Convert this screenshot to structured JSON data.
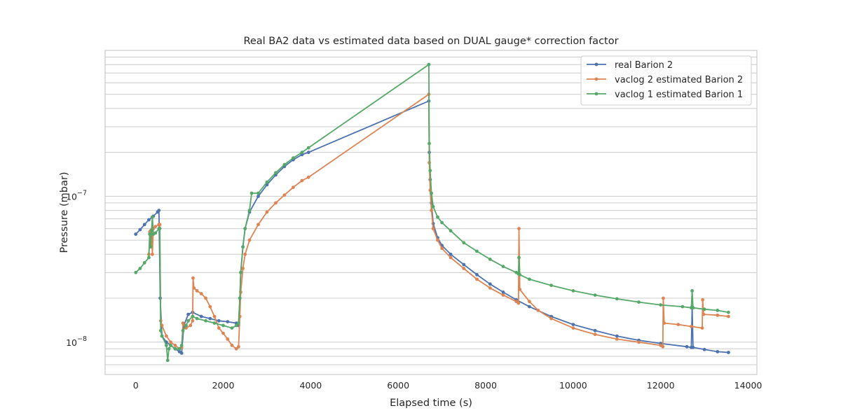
{
  "chart_data": {
    "type": "line",
    "title": "Real BA2 data vs estimated data based on DUAL gauge* correction factor",
    "xlabel": "Elapsed time (s)",
    "ylabel": "Pressure (mbar)",
    "xlim": [
      -700,
      14200
    ],
    "ylim": [
      6e-09,
      1e-06
    ],
    "yscale": "log",
    "grid": "horizontal",
    "legend_position": "top-right",
    "x_ticks": [
      {
        "value": 0,
        "label": "0"
      },
      {
        "value": 2000,
        "label": "2000"
      },
      {
        "value": 4000,
        "label": "4000"
      },
      {
        "value": 6000,
        "label": "6000"
      },
      {
        "value": 8000,
        "label": "8000"
      },
      {
        "value": 10000,
        "label": "10000"
      },
      {
        "value": 12000,
        "label": "12000"
      },
      {
        "value": 14000,
        "label": "14000"
      }
    ],
    "y_major_ticks": [
      {
        "value": 1e-08,
        "base": "10",
        "exp": "−8"
      },
      {
        "value": 1e-07,
        "base": "10",
        "exp": "−7"
      }
    ],
    "y_minor_gridlines": [
      6e-09,
      7e-09,
      8e-09,
      9e-09,
      1e-08,
      2e-08,
      3e-08,
      4e-08,
      5e-08,
      6e-08,
      7e-08,
      8e-08,
      9e-08,
      1e-07,
      2e-07,
      3e-07,
      4e-07,
      5e-07,
      6e-07,
      7e-07,
      8e-07,
      9e-07
    ],
    "series": [
      {
        "name": "real Barion 2",
        "color": "#4c72b0",
        "points": [
          [
            0,
            5.5e-08
          ],
          [
            100,
            5.9e-08
          ],
          [
            200,
            6.4e-08
          ],
          [
            300,
            6.9e-08
          ],
          [
            400,
            7.3e-08
          ],
          [
            500,
            7.8e-08
          ],
          [
            530,
            8e-08
          ],
          [
            560,
            2e-08
          ],
          [
            600,
            1.1e-08
          ],
          [
            700,
            1e-08
          ],
          [
            800,
            9.5e-09
          ],
          [
            900,
            9e-09
          ],
          [
            1000,
            8.6e-09
          ],
          [
            1050,
            8.4e-09
          ],
          [
            1100,
            1.3e-08
          ],
          [
            1200,
            1.55e-08
          ],
          [
            1300,
            1.6e-08
          ],
          [
            1500,
            1.5e-08
          ],
          [
            1700,
            1.45e-08
          ],
          [
            1900,
            1.4e-08
          ],
          [
            2100,
            1.38e-08
          ],
          [
            2300,
            1.35e-08
          ],
          [
            2350,
            1.3e-08
          ],
          [
            2380,
            2e-08
          ],
          [
            2400,
            3e-08
          ],
          [
            2450,
            4.5e-08
          ],
          [
            2500,
            6e-08
          ],
          [
            2600,
            7.8e-08
          ],
          [
            2800,
            1e-07
          ],
          [
            3000,
            1.2e-07
          ],
          [
            3200,
            1.4e-07
          ],
          [
            3400,
            1.6e-07
          ],
          [
            3600,
            1.78e-07
          ],
          [
            3800,
            1.93e-07
          ],
          [
            3950,
            2e-07
          ],
          [
            6700,
            4.5e-07
          ],
          [
            6710,
            2e-07
          ],
          [
            6730,
            1.3e-07
          ],
          [
            6760,
            9e-08
          ],
          [
            6800,
            6.5e-08
          ],
          [
            6900,
            5.2e-08
          ],
          [
            7000,
            4.6e-08
          ],
          [
            7200,
            4e-08
          ],
          [
            7500,
            3.4e-08
          ],
          [
            7800,
            2.9e-08
          ],
          [
            8100,
            2.5e-08
          ],
          [
            8400,
            2.2e-08
          ],
          [
            8700,
            1.95e-08
          ],
          [
            9000,
            1.75e-08
          ],
          [
            9500,
            1.5e-08
          ],
          [
            10000,
            1.32e-08
          ],
          [
            10500,
            1.2e-08
          ],
          [
            11000,
            1.1e-08
          ],
          [
            11500,
            1.03e-08
          ],
          [
            12000,
            9.8e-09
          ],
          [
            12600,
            9.3e-09
          ],
          [
            12700,
            9.2e-09
          ],
          [
            12720,
            1.75e-08
          ],
          [
            12740,
            9.2e-09
          ],
          [
            13000,
            8.9e-09
          ],
          [
            13300,
            8.6e-09
          ],
          [
            13550,
            8.5e-09
          ]
        ]
      },
      {
        "name": "vaclog 2 estimated Barion 2",
        "color": "#dd8452",
        "points": [
          [
            300,
            4e-08
          ],
          [
            320,
            5.7e-08
          ],
          [
            340,
            5.8e-08
          ],
          [
            360,
            5.9e-08
          ],
          [
            380,
            4e-08
          ],
          [
            400,
            6e-08
          ],
          [
            450,
            6.2e-08
          ],
          [
            530,
            6.4e-08
          ],
          [
            550,
            6.4e-08
          ],
          [
            570,
            1.4e-08
          ],
          [
            600,
            1.3e-08
          ],
          [
            700,
            1.1e-08
          ],
          [
            800,
            1e-08
          ],
          [
            900,
            9.5e-09
          ],
          [
            1000,
            9e-09
          ],
          [
            1050,
            9.2e-09
          ],
          [
            1080,
            1.35e-08
          ],
          [
            1150,
            1.25e-08
          ],
          [
            1250,
            1.3e-08
          ],
          [
            1300,
            1.4e-08
          ],
          [
            1310,
            2.75e-08
          ],
          [
            1330,
            2.35e-08
          ],
          [
            1400,
            2.25e-08
          ],
          [
            1500,
            2.15e-08
          ],
          [
            1600,
            2e-08
          ],
          [
            1700,
            1.75e-08
          ],
          [
            1800,
            1.5e-08
          ],
          [
            1900,
            1.25e-08
          ],
          [
            2000,
            1.15e-08
          ],
          [
            2100,
            1.05e-08
          ],
          [
            2200,
            9.5e-09
          ],
          [
            2300,
            9e-09
          ],
          [
            2350,
            9.3e-09
          ],
          [
            2380,
            1.5e-08
          ],
          [
            2400,
            2.2e-08
          ],
          [
            2450,
            3.2e-08
          ],
          [
            2500,
            4e-08
          ],
          [
            2600,
            5e-08
          ],
          [
            2800,
            6.4e-08
          ],
          [
            3000,
            7.8e-08
          ],
          [
            3200,
            9e-08
          ],
          [
            3400,
            1.02e-07
          ],
          [
            3600,
            1.15e-07
          ],
          [
            3800,
            1.28e-07
          ],
          [
            3950,
            1.35e-07
          ],
          [
            6700,
            5e-07
          ],
          [
            6710,
            1.7e-07
          ],
          [
            6730,
            1.1e-07
          ],
          [
            6760,
            8e-08
          ],
          [
            6800,
            6e-08
          ],
          [
            6900,
            5e-08
          ],
          [
            7000,
            4.4e-08
          ],
          [
            7200,
            3.8e-08
          ],
          [
            7500,
            3.2e-08
          ],
          [
            7800,
            2.7e-08
          ],
          [
            8100,
            2.35e-08
          ],
          [
            8400,
            2.1e-08
          ],
          [
            8700,
            1.9e-08
          ],
          [
            8750,
            1.85e-08
          ],
          [
            8760,
            6e-08
          ],
          [
            8780,
            2.3e-08
          ],
          [
            9000,
            1.9e-08
          ],
          [
            9200,
            1.65e-08
          ],
          [
            9500,
            1.45e-08
          ],
          [
            10000,
            1.25e-08
          ],
          [
            10500,
            1.13e-08
          ],
          [
            11000,
            1.05e-08
          ],
          [
            11500,
            1e-08
          ],
          [
            12000,
            9.5e-09
          ],
          [
            12050,
            9.3e-09
          ],
          [
            12060,
            2e-08
          ],
          [
            12080,
            1.35e-08
          ],
          [
            12400,
            1.32e-08
          ],
          [
            12700,
            1.28e-08
          ],
          [
            12950,
            1.25e-08
          ],
          [
            12960,
            1.95e-08
          ],
          [
            12980,
            1.55e-08
          ],
          [
            13300,
            1.53e-08
          ],
          [
            13550,
            1.5e-08
          ]
        ]
      },
      {
        "name": "vaclog 1 estimated Barion 1",
        "color": "#55a868",
        "points": [
          [
            0,
            3e-08
          ],
          [
            100,
            3.2e-08
          ],
          [
            200,
            3.5e-08
          ],
          [
            300,
            3.8e-08
          ],
          [
            320,
            5.5e-08
          ],
          [
            340,
            4.5e-08
          ],
          [
            360,
            5.8e-08
          ],
          [
            380,
            7.2e-08
          ],
          [
            400,
            5.5e-08
          ],
          [
            450,
            5.6e-08
          ],
          [
            530,
            6e-08
          ],
          [
            550,
            6e-08
          ],
          [
            570,
            1.2e-08
          ],
          [
            600,
            1.1e-08
          ],
          [
            700,
            9.5e-09
          ],
          [
            730,
            7.5e-09
          ],
          [
            760,
            9e-09
          ],
          [
            800,
            9.5e-09
          ],
          [
            900,
            9e-09
          ],
          [
            1000,
            9e-09
          ],
          [
            1050,
            9.5e-09
          ],
          [
            1080,
            1.2e-08
          ],
          [
            1150,
            1.3e-08
          ],
          [
            1200,
            1.4e-08
          ],
          [
            1300,
            1.5e-08
          ],
          [
            1400,
            1.45e-08
          ],
          [
            1600,
            1.4e-08
          ],
          [
            1800,
            1.35e-08
          ],
          [
            2000,
            1.3e-08
          ],
          [
            2200,
            1.25e-08
          ],
          [
            2300,
            1.3e-08
          ],
          [
            2350,
            1.35e-08
          ],
          [
            2380,
            2e-08
          ],
          [
            2400,
            3e-08
          ],
          [
            2450,
            4.5e-08
          ],
          [
            2500,
            6e-08
          ],
          [
            2600,
            8e-08
          ],
          [
            2650,
            1.05e-07
          ],
          [
            2800,
            1.05e-07
          ],
          [
            3000,
            1.25e-07
          ],
          [
            3200,
            1.45e-07
          ],
          [
            3400,
            1.65e-07
          ],
          [
            3600,
            1.83e-07
          ],
          [
            3800,
            2e-07
          ],
          [
            3950,
            2.15e-07
          ],
          [
            6700,
            8e-07
          ],
          [
            6710,
            2.3e-07
          ],
          [
            6730,
            1.5e-07
          ],
          [
            6760,
            1.05e-07
          ],
          [
            6800,
            8.5e-08
          ],
          [
            6900,
            7.2e-08
          ],
          [
            7000,
            6.6e-08
          ],
          [
            7200,
            5.8e-08
          ],
          [
            7500,
            4.8e-08
          ],
          [
            7800,
            4.2e-08
          ],
          [
            8100,
            3.7e-08
          ],
          [
            8400,
            3.3e-08
          ],
          [
            8700,
            3e-08
          ],
          [
            8750,
            2.95e-08
          ],
          [
            8760,
            3.8e-08
          ],
          [
            8780,
            2.9e-08
          ],
          [
            9000,
            2.7e-08
          ],
          [
            9500,
            2.45e-08
          ],
          [
            10000,
            2.25e-08
          ],
          [
            10500,
            2.1e-08
          ],
          [
            11000,
            1.98e-08
          ],
          [
            11500,
            1.88e-08
          ],
          [
            12000,
            1.8e-08
          ],
          [
            12500,
            1.75e-08
          ],
          [
            12700,
            1.72e-08
          ],
          [
            12720,
            2.25e-08
          ],
          [
            12740,
            1.72e-08
          ],
          [
            13000,
            1.68e-08
          ],
          [
            13300,
            1.65e-08
          ],
          [
            13550,
            1.6e-08
          ]
        ]
      }
    ]
  }
}
